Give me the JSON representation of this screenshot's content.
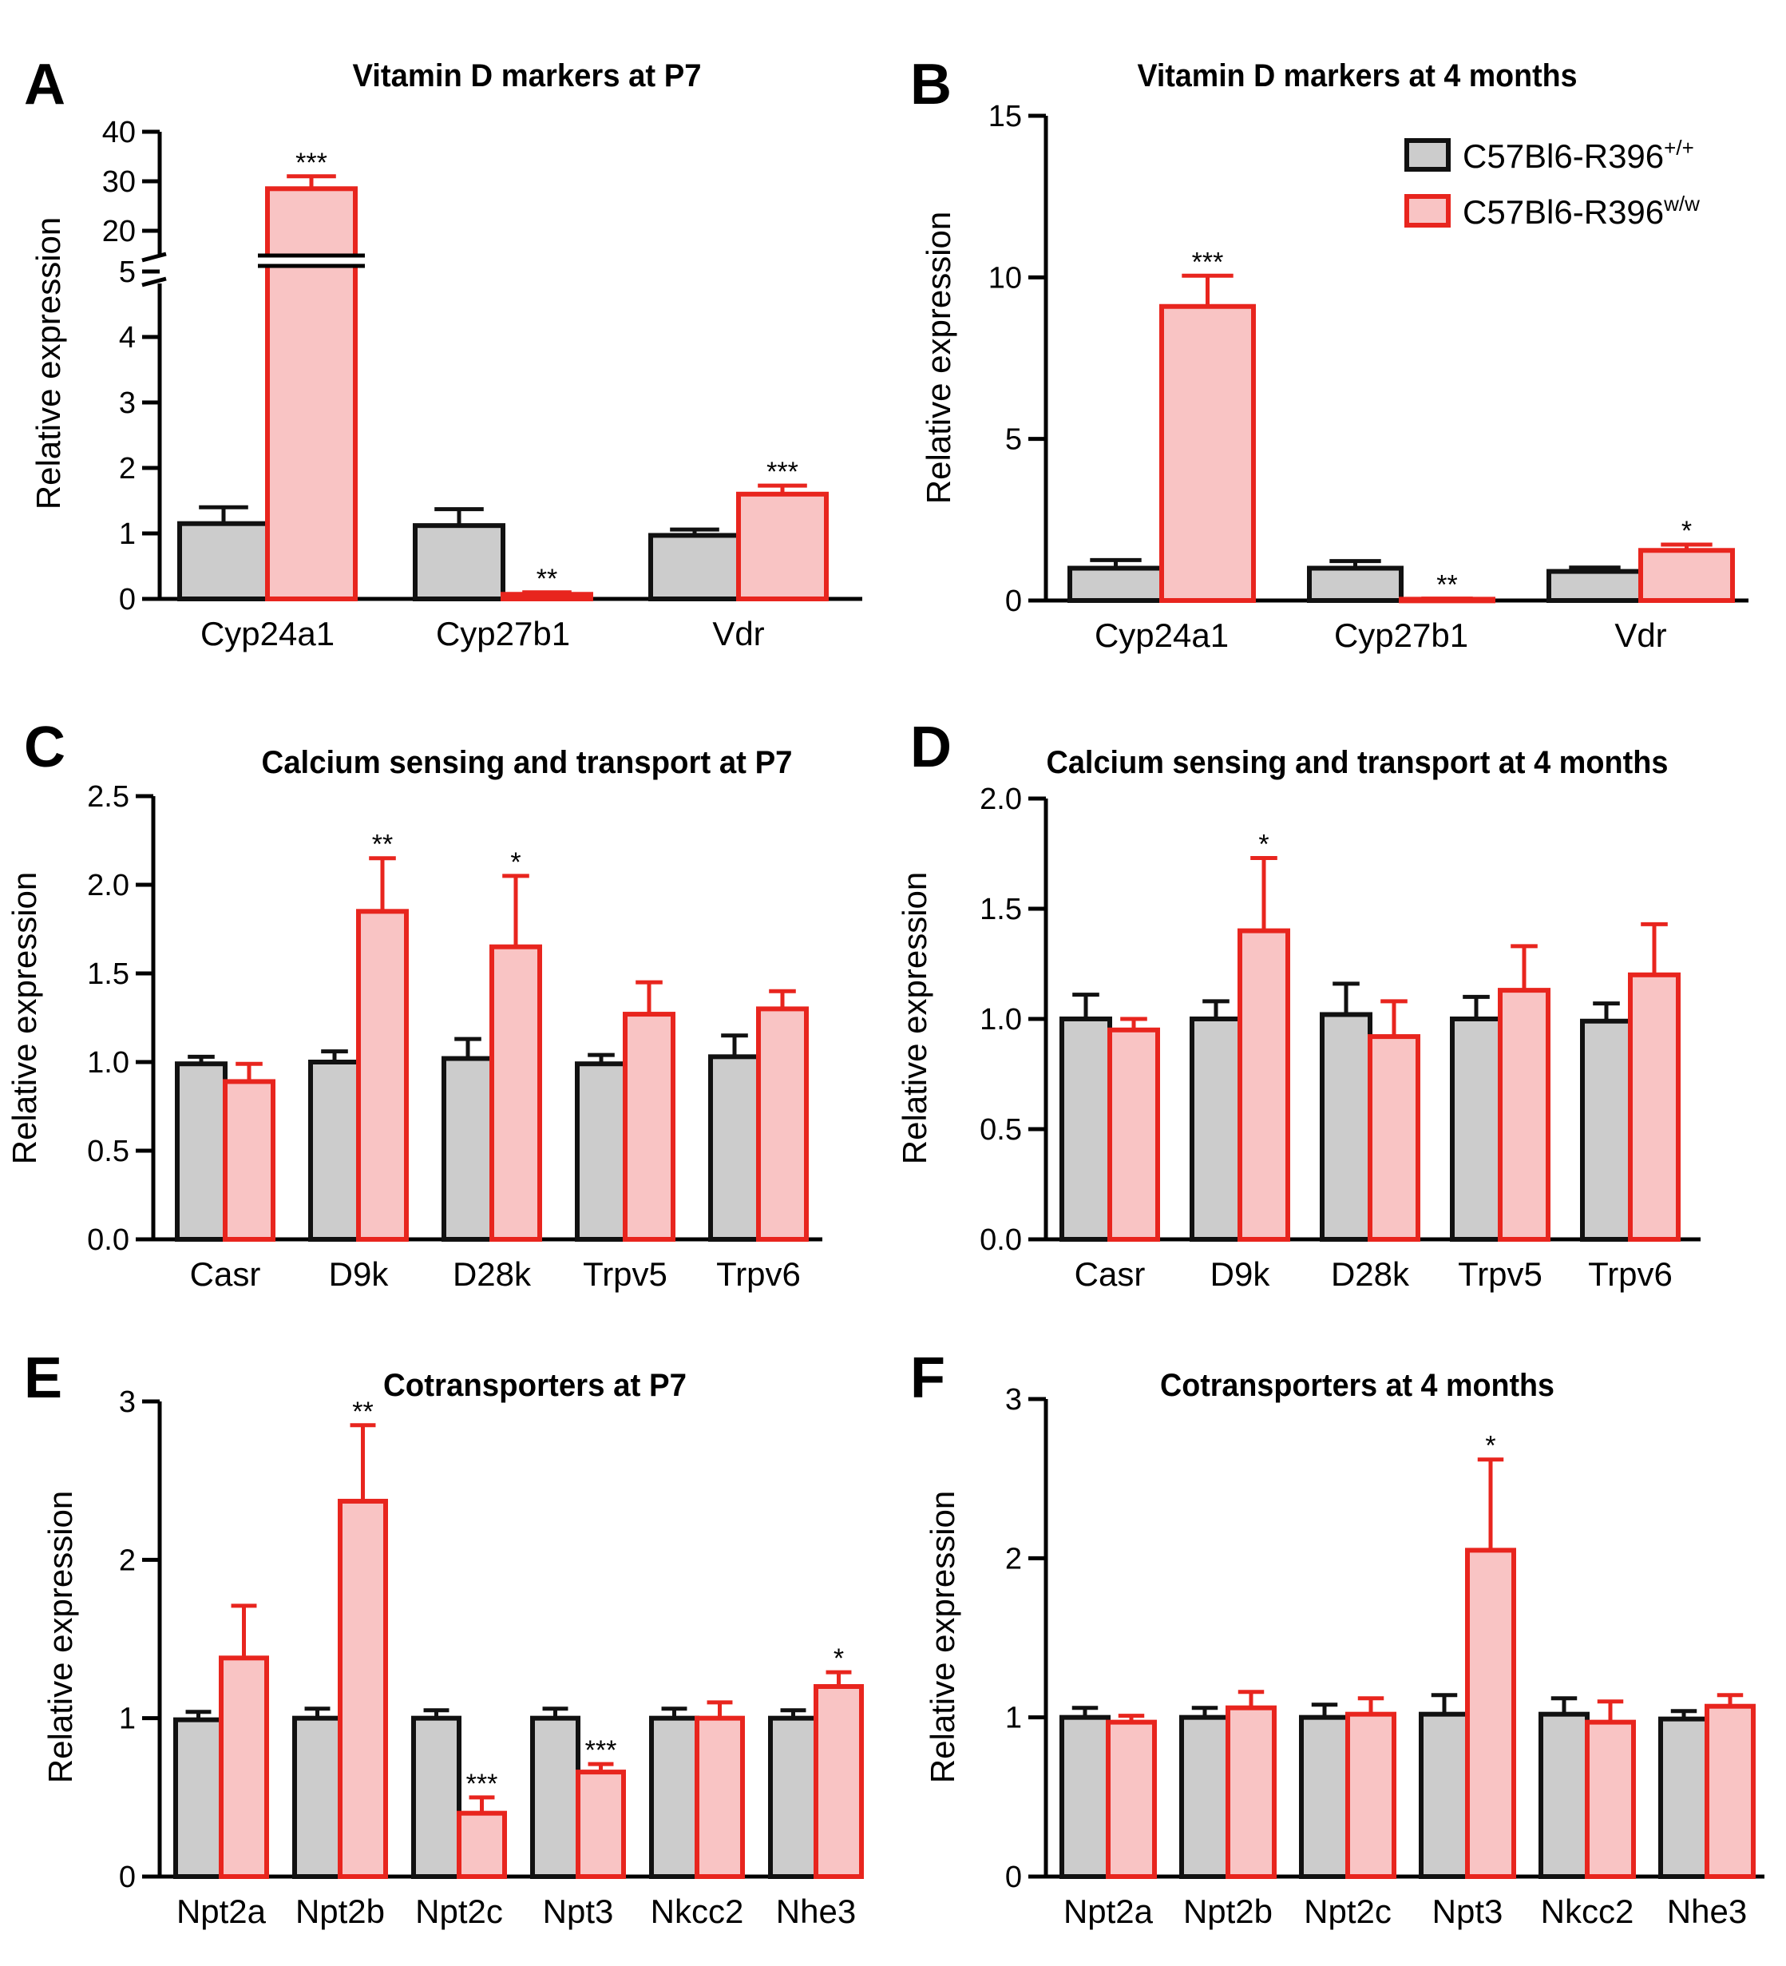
{
  "legend": {
    "entries": [
      {
        "label": "C57Bl6-R396",
        "sup": "+/+",
        "fill": "#cccccc",
        "stroke": "#111111"
      },
      {
        "label": "C57Bl6-R396",
        "sup": "w/w",
        "fill": "#f9c4c4",
        "stroke": "#e8251e"
      }
    ]
  },
  "colors": {
    "wt_fill": "#cccccc",
    "wt_stroke": "#111111",
    "mut_fill": "#f9c4c4",
    "mut_stroke": "#e8251e"
  },
  "chart_data": [
    {
      "letter": "A",
      "type": "bar",
      "title": "Vitamin D markers at P7",
      "ylabel": "Relative expression",
      "ylim": [
        0,
        40
      ],
      "broken_axis": true,
      "lower_ticks": [
        "0",
        "1",
        "2",
        "3",
        "4",
        "5"
      ],
      "upper_ticks": [
        "20",
        "30",
        "40"
      ],
      "categories": [
        "Cyp24a1",
        "Cyp27b1",
        "Vdr"
      ],
      "series": [
        {
          "name": "C57Bl6-R396+/+",
          "values": [
            1.15,
            1.12,
            0.97
          ],
          "errors": [
            0.25,
            0.25,
            0.09
          ]
        },
        {
          "name": "C57Bl6-R396w/w",
          "values": [
            28.5,
            0.07,
            1.6
          ],
          "errors": [
            2.5,
            0.03,
            0.13
          ]
        }
      ],
      "significance": [
        "***",
        "**",
        "***"
      ]
    },
    {
      "letter": "B",
      "type": "bar",
      "title": "Vitamin D markers at 4 months",
      "ylabel": "Relative expression",
      "ylim": [
        0,
        15
      ],
      "ticks": [
        0,
        5,
        10,
        15
      ],
      "tick_labels": [
        "0",
        "5",
        "10",
        "15"
      ],
      "categories": [
        "Cyp24a1",
        "Cyp27b1",
        "Vdr"
      ],
      "series": [
        {
          "name": "C57Bl6-R396+/+",
          "values": [
            1.0,
            1.0,
            0.9
          ],
          "errors": [
            0.25,
            0.22,
            0.12
          ]
        },
        {
          "name": "C57Bl6-R396w/w",
          "values": [
            9.1,
            0.04,
            1.55
          ],
          "errors": [
            0.95,
            0.02,
            0.18
          ]
        }
      ],
      "significance": [
        "***",
        "**",
        "*"
      ]
    },
    {
      "letter": "C",
      "type": "bar",
      "title": "Calcium sensing and transport at P7",
      "ylabel": "Relative expression",
      "ylim": [
        0,
        2.5
      ],
      "ticks": [
        0,
        0.5,
        1,
        1.5,
        2,
        2.5
      ],
      "tick_labels": [
        "0.0",
        "0.5",
        "1.0",
        "1.5",
        "2.0",
        "2.5"
      ],
      "categories": [
        "Casr",
        "D9k",
        "D28k",
        "Trpv5",
        "Trpv6"
      ],
      "series": [
        {
          "name": "C57Bl6-R396+/+",
          "values": [
            0.99,
            1.0,
            1.02,
            0.99,
            1.03
          ],
          "errors": [
            0.04,
            0.06,
            0.11,
            0.05,
            0.12
          ]
        },
        {
          "name": "C57Bl6-R396w/w",
          "values": [
            0.89,
            1.85,
            1.65,
            1.27,
            1.3
          ],
          "errors": [
            0.1,
            0.3,
            0.4,
            0.18,
            0.1
          ]
        }
      ],
      "significance": [
        "",
        "**",
        "*",
        "",
        ""
      ]
    },
    {
      "letter": "D",
      "type": "bar",
      "title": "Calcium sensing and transport at 4 months",
      "ylabel": "Relative expression",
      "ylim": [
        0,
        2.0
      ],
      "ticks": [
        0,
        0.5,
        1,
        1.5,
        2
      ],
      "tick_labels": [
        "0.0",
        "0.5",
        "1.0",
        "1.5",
        "2.0"
      ],
      "categories": [
        "Casr",
        "D9k",
        "D28k",
        "Trpv5",
        "Trpv6"
      ],
      "series": [
        {
          "name": "C57Bl6-R396+/+",
          "values": [
            1.0,
            1.0,
            1.02,
            1.0,
            0.99
          ],
          "errors": [
            0.11,
            0.08,
            0.14,
            0.1,
            0.08
          ]
        },
        {
          "name": "C57Bl6-R396w/w",
          "values": [
            0.95,
            1.4,
            0.92,
            1.13,
            1.2
          ],
          "errors": [
            0.05,
            0.33,
            0.16,
            0.2,
            0.23
          ]
        }
      ],
      "significance": [
        "",
        "*",
        "",
        "",
        ""
      ]
    },
    {
      "letter": "E",
      "type": "bar",
      "title": "Cotransporters at P7",
      "ylabel": "Relative expression",
      "ylim": [
        0,
        3
      ],
      "ticks": [
        0,
        1,
        2,
        3
      ],
      "tick_labels": [
        "0",
        "1",
        "2",
        "3"
      ],
      "categories": [
        "Npt2a",
        "Npt2b",
        "Npt2c",
        "Npt3",
        "Nkcc2",
        "Nhe3"
      ],
      "series": [
        {
          "name": "C57Bl6-R396+/+",
          "values": [
            0.99,
            1.0,
            1.0,
            1.0,
            1.0,
            1.0
          ],
          "errors": [
            0.05,
            0.06,
            0.05,
            0.06,
            0.06,
            0.05
          ]
        },
        {
          "name": "C57Bl6-R396w/w",
          "values": [
            1.38,
            2.37,
            0.4,
            0.66,
            1.0,
            1.2
          ],
          "errors": [
            0.33,
            0.48,
            0.1,
            0.05,
            0.1,
            0.09
          ]
        }
      ],
      "significance": [
        "",
        "**",
        "***",
        "***",
        "",
        "*"
      ]
    },
    {
      "letter": "F",
      "type": "bar",
      "title": "Cotransporters at 4 months",
      "ylabel": "Relative expression",
      "ylim": [
        0,
        3
      ],
      "ticks": [
        0,
        1,
        2,
        3
      ],
      "tick_labels": [
        "0",
        "1",
        "2",
        "3"
      ],
      "categories": [
        "Npt2a",
        "Npt2b",
        "Npt2c",
        "Npt3",
        "Nkcc2",
        "Nhe3"
      ],
      "series": [
        {
          "name": "C57Bl6-R396+/+",
          "values": [
            1.0,
            1.0,
            1.0,
            1.02,
            1.02,
            0.99
          ],
          "errors": [
            0.06,
            0.06,
            0.08,
            0.12,
            0.1,
            0.05
          ]
        },
        {
          "name": "C57Bl6-R396w/w",
          "values": [
            0.97,
            1.06,
            1.02,
            2.05,
            0.97,
            1.07
          ],
          "errors": [
            0.04,
            0.1,
            0.1,
            0.57,
            0.13,
            0.07
          ]
        }
      ],
      "significance": [
        "",
        "",
        "",
        "*",
        "",
        ""
      ]
    }
  ]
}
